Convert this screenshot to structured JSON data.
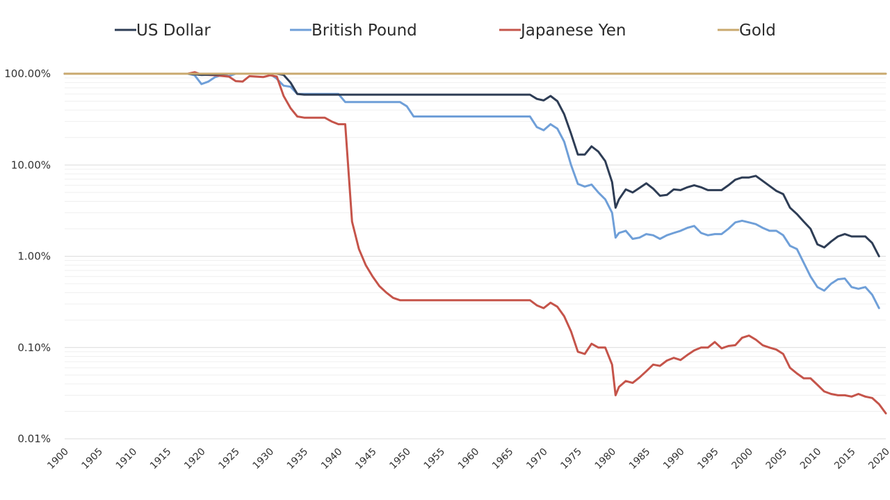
{
  "chart_data": {
    "type": "line",
    "title": "",
    "xlabel": "",
    "ylabel": "",
    "yscale": "log",
    "ylim": [
      0.01,
      100
    ],
    "xlim": [
      1900,
      2020
    ],
    "grid": true,
    "legend": "top",
    "yticks": [
      {
        "value": 100,
        "label": "100.00%"
      },
      {
        "value": 10,
        "label": "10.00%"
      },
      {
        "value": 1,
        "label": "1.00%"
      },
      {
        "value": 0.1,
        "label": "0.10%"
      },
      {
        "value": 0.01,
        "label": "0.01%"
      }
    ],
    "xticks": [
      "1900",
      "1905",
      "1910",
      "1915",
      "1920",
      "1925",
      "1930",
      "1935",
      "1940",
      "1945",
      "1950",
      "1955",
      "1960",
      "1965",
      "1970",
      "1975",
      "1980",
      "1985",
      "1990",
      "1995",
      "2000",
      "2005",
      "2010",
      "2015",
      "2020"
    ],
    "series": [
      {
        "name": "US Dollar",
        "color": "#2e3d55",
        "points": [
          [
            1900,
            100
          ],
          [
            1918,
            100
          ],
          [
            1920,
            97
          ],
          [
            1922,
            98
          ],
          [
            1924,
            100
          ],
          [
            1926,
            100
          ],
          [
            1928,
            100
          ],
          [
            1930,
            100
          ],
          [
            1931,
            100
          ],
          [
            1932,
            97
          ],
          [
            1933,
            80
          ],
          [
            1934,
            60
          ],
          [
            1935,
            59
          ],
          [
            1940,
            59
          ],
          [
            1945,
            59
          ],
          [
            1950,
            59
          ],
          [
            1955,
            59
          ],
          [
            1960,
            59
          ],
          [
            1965,
            59
          ],
          [
            1968,
            59
          ],
          [
            1969,
            53
          ],
          [
            1970,
            51
          ],
          [
            1971,
            57
          ],
          [
            1972,
            50
          ],
          [
            1973,
            36
          ],
          [
            1974,
            22
          ],
          [
            1975,
            13
          ],
          [
            1976,
            13
          ],
          [
            1977,
            16
          ],
          [
            1978,
            14
          ],
          [
            1979,
            11
          ],
          [
            1980,
            6.5
          ],
          [
            1980.5,
            3.4
          ],
          [
            1981,
            4.2
          ],
          [
            1982,
            5.4
          ],
          [
            1983,
            5
          ],
          [
            1984,
            5.6
          ],
          [
            1985,
            6.3
          ],
          [
            1986,
            5.5
          ],
          [
            1987,
            4.6
          ],
          [
            1988,
            4.7
          ],
          [
            1989,
            5.4
          ],
          [
            1990,
            5.3
          ],
          [
            1991,
            5.7
          ],
          [
            1992,
            6
          ],
          [
            1993,
            5.7
          ],
          [
            1994,
            5.3
          ],
          [
            1995,
            5.3
          ],
          [
            1996,
            5.3
          ],
          [
            1997,
            6
          ],
          [
            1998,
            6.9
          ],
          [
            1999,
            7.3
          ],
          [
            2000,
            7.3
          ],
          [
            2001,
            7.6
          ],
          [
            2002,
            6.7
          ],
          [
            2003,
            5.9
          ],
          [
            2004,
            5.2
          ],
          [
            2005,
            4.8
          ],
          [
            2006,
            3.4
          ],
          [
            2007,
            2.9
          ],
          [
            2008,
            2.4
          ],
          [
            2009,
            2
          ],
          [
            2010,
            1.35
          ],
          [
            2011,
            1.25
          ],
          [
            2012,
            1.45
          ],
          [
            2013,
            1.65
          ],
          [
            2014,
            1.75
          ],
          [
            2015,
            1.65
          ],
          [
            2016,
            1.65
          ],
          [
            2017,
            1.65
          ],
          [
            2018,
            1.4
          ],
          [
            2019,
            1
          ]
        ]
      },
      {
        "name": "British Pound",
        "color": "#6f9fd8",
        "points": [
          [
            1900,
            100
          ],
          [
            1918,
            100
          ],
          [
            1919,
            96
          ],
          [
            1920,
            77
          ],
          [
            1921,
            82
          ],
          [
            1922,
            92
          ],
          [
            1923,
            97
          ],
          [
            1924,
            94
          ],
          [
            1925,
            100
          ],
          [
            1926,
            100
          ],
          [
            1928,
            100
          ],
          [
            1930,
            100
          ],
          [
            1931,
            88
          ],
          [
            1932,
            74
          ],
          [
            1933,
            72
          ],
          [
            1934,
            60
          ],
          [
            1935,
            60
          ],
          [
            1940,
            60
          ],
          [
            1941,
            49
          ],
          [
            1942,
            49
          ],
          [
            1945,
            49
          ],
          [
            1949,
            49
          ],
          [
            1950,
            44
          ],
          [
            1951,
            34
          ],
          [
            1955,
            34
          ],
          [
            1960,
            34
          ],
          [
            1965,
            34
          ],
          [
            1968,
            34
          ],
          [
            1969,
            26
          ],
          [
            1970,
            24
          ],
          [
            1971,
            28
          ],
          [
            1972,
            25
          ],
          [
            1973,
            18
          ],
          [
            1974,
            10
          ],
          [
            1975,
            6.2
          ],
          [
            1976,
            5.8
          ],
          [
            1977,
            6.1
          ],
          [
            1978,
            5
          ],
          [
            1979,
            4.2
          ],
          [
            1980,
            3
          ],
          [
            1980.5,
            1.6
          ],
          [
            1981,
            1.8
          ],
          [
            1982,
            1.9
          ],
          [
            1983,
            1.55
          ],
          [
            1984,
            1.6
          ],
          [
            1985,
            1.75
          ],
          [
            1986,
            1.7
          ],
          [
            1987,
            1.55
          ],
          [
            1988,
            1.7
          ],
          [
            1989,
            1.8
          ],
          [
            1990,
            1.9
          ],
          [
            1991,
            2.05
          ],
          [
            1992,
            2.15
          ],
          [
            1993,
            1.8
          ],
          [
            1994,
            1.7
          ],
          [
            1995,
            1.75
          ],
          [
            1996,
            1.75
          ],
          [
            1997,
            2
          ],
          [
            1998,
            2.35
          ],
          [
            1999,
            2.45
          ],
          [
            2000,
            2.35
          ],
          [
            2001,
            2.25
          ],
          [
            2002,
            2.05
          ],
          [
            2003,
            1.9
          ],
          [
            2004,
            1.9
          ],
          [
            2005,
            1.7
          ],
          [
            2006,
            1.3
          ],
          [
            2007,
            1.2
          ],
          [
            2008,
            0.85
          ],
          [
            2009,
            0.6
          ],
          [
            2010,
            0.46
          ],
          [
            2011,
            0.42
          ],
          [
            2012,
            0.5
          ],
          [
            2013,
            0.56
          ],
          [
            2014,
            0.57
          ],
          [
            2015,
            0.46
          ],
          [
            2016,
            0.44
          ],
          [
            2017,
            0.46
          ],
          [
            2018,
            0.38
          ],
          [
            2019,
            0.27
          ]
        ]
      },
      {
        "name": "Japanese Yen",
        "color": "#c5544a",
        "points": [
          [
            1900,
            100
          ],
          [
            1918,
            100
          ],
          [
            1919,
            104
          ],
          [
            1920,
            98
          ],
          [
            1922,
            96
          ],
          [
            1924,
            93
          ],
          [
            1925,
            83
          ],
          [
            1926,
            82
          ],
          [
            1927,
            94
          ],
          [
            1928,
            93
          ],
          [
            1929,
            92
          ],
          [
            1930,
            96
          ],
          [
            1931,
            93
          ],
          [
            1932,
            57
          ],
          [
            1933,
            42
          ],
          [
            1934,
            34
          ],
          [
            1935,
            33
          ],
          [
            1938,
            33
          ],
          [
            1939,
            30
          ],
          [
            1940,
            28
          ],
          [
            1941,
            28
          ],
          [
            1942,
            2.4
          ],
          [
            1943,
            1.2
          ],
          [
            1944,
            0.8
          ],
          [
            1945,
            0.6
          ],
          [
            1946,
            0.47
          ],
          [
            1947,
            0.4
          ],
          [
            1948,
            0.35
          ],
          [
            1949,
            0.33
          ],
          [
            1950,
            0.33
          ],
          [
            1955,
            0.33
          ],
          [
            1960,
            0.33
          ],
          [
            1965,
            0.33
          ],
          [
            1968,
            0.33
          ],
          [
            1969,
            0.29
          ],
          [
            1970,
            0.27
          ],
          [
            1971,
            0.31
          ],
          [
            1972,
            0.28
          ],
          [
            1973,
            0.22
          ],
          [
            1974,
            0.15
          ],
          [
            1975,
            0.09
          ],
          [
            1976,
            0.085
          ],
          [
            1977,
            0.11
          ],
          [
            1978,
            0.1
          ],
          [
            1979,
            0.1
          ],
          [
            1980,
            0.065
          ],
          [
            1980.5,
            0.03
          ],
          [
            1981,
            0.037
          ],
          [
            1982,
            0.043
          ],
          [
            1983,
            0.041
          ],
          [
            1984,
            0.047
          ],
          [
            1985,
            0.055
          ],
          [
            1986,
            0.065
          ],
          [
            1987,
            0.063
          ],
          [
            1988,
            0.072
          ],
          [
            1989,
            0.077
          ],
          [
            1990,
            0.073
          ],
          [
            1991,
            0.083
          ],
          [
            1992,
            0.093
          ],
          [
            1993,
            0.1
          ],
          [
            1994,
            0.1
          ],
          [
            1995,
            0.115
          ],
          [
            1996,
            0.098
          ],
          [
            1997,
            0.104
          ],
          [
            1998,
            0.106
          ],
          [
            1999,
            0.128
          ],
          [
            2000,
            0.135
          ],
          [
            2001,
            0.122
          ],
          [
            2002,
            0.106
          ],
          [
            2003,
            0.1
          ],
          [
            2004,
            0.095
          ],
          [
            2005,
            0.085
          ],
          [
            2006,
            0.06
          ],
          [
            2007,
            0.052
          ],
          [
            2008,
            0.046
          ],
          [
            2009,
            0.046
          ],
          [
            2010,
            0.039
          ],
          [
            2011,
            0.033
          ],
          [
            2012,
            0.031
          ],
          [
            2013,
            0.03
          ],
          [
            2014,
            0.03
          ],
          [
            2015,
            0.029
          ],
          [
            2016,
            0.031
          ],
          [
            2017,
            0.029
          ],
          [
            2018,
            0.028
          ],
          [
            2019,
            0.024
          ],
          [
            2020,
            0.019
          ]
        ]
      },
      {
        "name": "Gold",
        "color": "#c9a96e",
        "points": [
          [
            1900,
            100
          ],
          [
            2020,
            100
          ]
        ]
      }
    ]
  }
}
